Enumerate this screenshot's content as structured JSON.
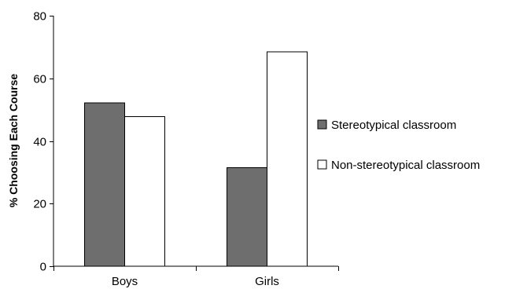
{
  "chart_data": {
    "type": "bar",
    "title": "",
    "xlabel": "",
    "ylabel": "% Choosing  Each Course",
    "ylim": [
      0,
      80
    ],
    "yticks": [
      0,
      20,
      40,
      60,
      80
    ],
    "categories": [
      "Boys",
      "Girls"
    ],
    "series": [
      {
        "name": "Stereotypical classroom",
        "color": "#6e6e6e",
        "values": [
          52.2,
          31.5
        ]
      },
      {
        "name": "Non-stereotypical classroom",
        "color": "#ffffff",
        "values": [
          47.8,
          68.5
        ]
      }
    ],
    "grid": false,
    "legend_position": "right"
  }
}
